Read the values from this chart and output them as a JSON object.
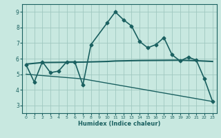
{
  "xlabel": "Humidex (Indice chaleur)",
  "ylabel": "",
  "background_color": "#c8e8e0",
  "grid_color": "#a0c8c0",
  "line_color": "#1a6060",
  "xlim": [
    -0.5,
    23.5
  ],
  "ylim": [
    2.5,
    9.5
  ],
  "xticks": [
    0,
    1,
    2,
    3,
    4,
    5,
    6,
    7,
    8,
    9,
    10,
    11,
    12,
    13,
    14,
    15,
    16,
    17,
    18,
    19,
    20,
    21,
    22,
    23
  ],
  "yticks": [
    3,
    4,
    5,
    6,
    7,
    8,
    9
  ],
  "series1_x": [
    0,
    1,
    2,
    3,
    4,
    5,
    6,
    7,
    8,
    10,
    11,
    12,
    13,
    14,
    15,
    16,
    17,
    18,
    19,
    20,
    21,
    22,
    23
  ],
  "series1_y": [
    5.6,
    4.5,
    5.8,
    5.1,
    5.2,
    5.8,
    5.8,
    4.3,
    6.9,
    8.3,
    9.0,
    8.5,
    8.1,
    7.1,
    6.7,
    6.9,
    7.35,
    6.25,
    5.85,
    6.1,
    5.9,
    4.7,
    3.25
  ],
  "series2_x": [
    0,
    2,
    7,
    10,
    11,
    14,
    19,
    21,
    23
  ],
  "series2_y": [
    5.65,
    5.75,
    5.78,
    5.82,
    5.85,
    5.88,
    5.9,
    5.87,
    5.82
  ],
  "series3_x": [
    0,
    7,
    23
  ],
  "series3_y": [
    5.0,
    4.7,
    3.25
  ]
}
